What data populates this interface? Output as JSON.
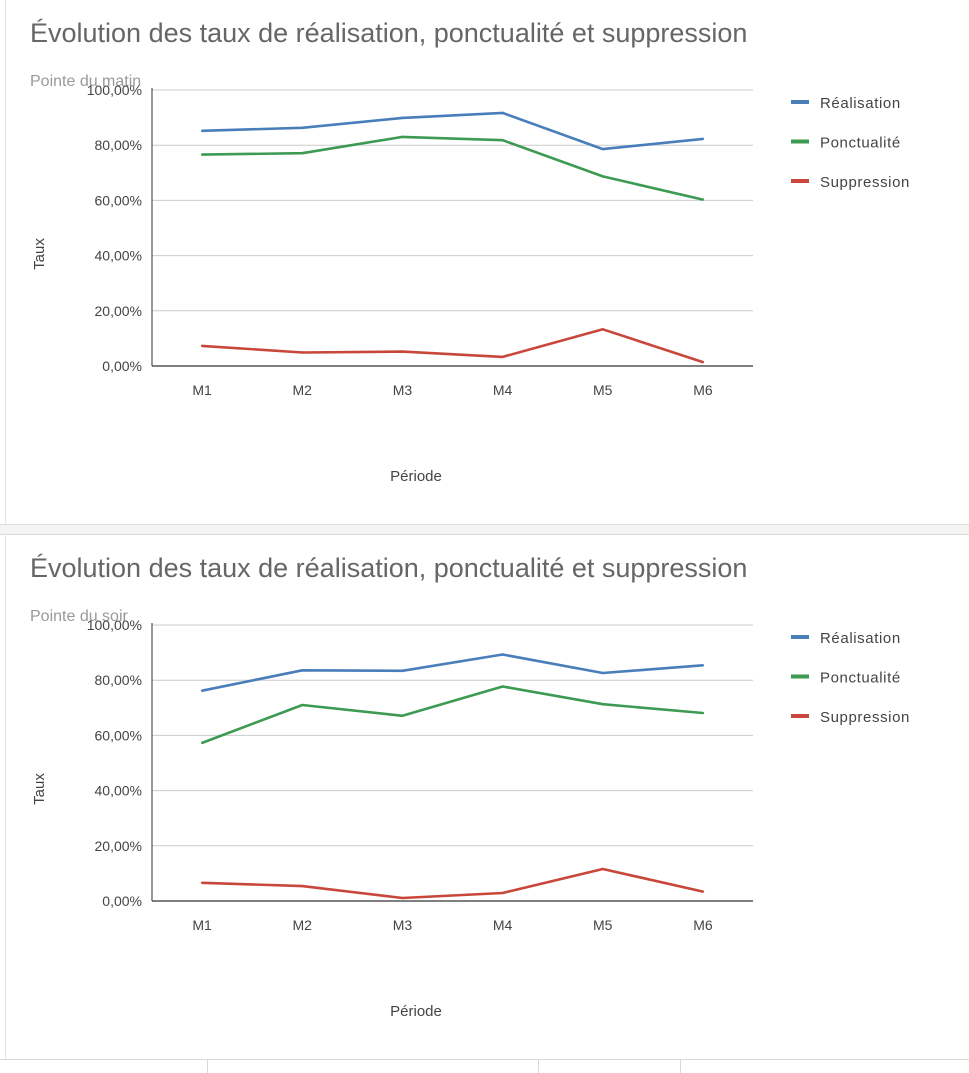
{
  "chart_data": [
    {
      "type": "line",
      "title": "Évolution des taux de réalisation, ponctualité et suppression",
      "subtitle": "Pointe du matin",
      "xlabel": "Période",
      "ylabel": "Taux",
      "categories": [
        "M1",
        "M2",
        "M3",
        "M4",
        "M5",
        "M6"
      ],
      "ylim": [
        0,
        100
      ],
      "yticks": [
        "0,00%",
        "20,00%",
        "40,00%",
        "60,00%",
        "80,00%",
        "100,00%"
      ],
      "grid": true,
      "legend_position": "right",
      "series": [
        {
          "name": "Réalisation",
          "color": "#4a7ebb",
          "values": [
            85.2,
            86.3,
            89.9,
            91.7,
            78.6,
            82.3
          ]
        },
        {
          "name": "Ponctualité",
          "color": "#3d9a52",
          "values": [
            76.6,
            77.1,
            83.0,
            81.8,
            68.7,
            60.3
          ]
        },
        {
          "name": "Suppression",
          "color": "#c9473a",
          "values": [
            7.3,
            4.9,
            5.2,
            3.3,
            13.3,
            1.4
          ]
        }
      ]
    },
    {
      "type": "line",
      "title": "Évolution des taux de réalisation, ponctualité et suppression",
      "subtitle": "Pointe du soir",
      "xlabel": "Période",
      "ylabel": "Taux",
      "categories": [
        "M1",
        "M2",
        "M3",
        "M4",
        "M5",
        "M6"
      ],
      "ylim": [
        0,
        100
      ],
      "yticks": [
        "0,00%",
        "20,00%",
        "40,00%",
        "60,00%",
        "80,00%",
        "100,00%"
      ],
      "grid": true,
      "legend_position": "right",
      "series": [
        {
          "name": "Réalisation",
          "color": "#4a7ebb",
          "values": [
            76.2,
            83.6,
            83.4,
            89.3,
            82.6,
            85.4
          ]
        },
        {
          "name": "Ponctualité",
          "color": "#3d9a52",
          "values": [
            57.3,
            71.0,
            67.1,
            77.7,
            71.3,
            68.1
          ]
        },
        {
          "name": "Suppression",
          "color": "#c9473a",
          "values": [
            6.6,
            5.4,
            1.1,
            2.9,
            11.6,
            3.4
          ]
        }
      ]
    }
  ]
}
